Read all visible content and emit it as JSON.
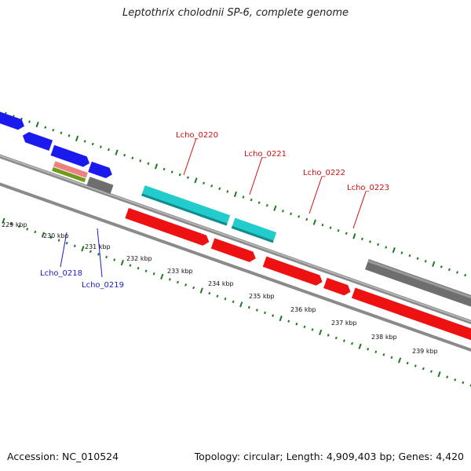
{
  "title": "Leptothrix cholodnii SP-6, complete genome",
  "accession": "Accession: NC_010524",
  "summary": "Topology: circular; Length: 4,909,403 bp; Genes: 4,420",
  "colors": {
    "background": "#ffffff",
    "backbone": "#8a8a8a",
    "ticks": "#1f7a1f",
    "gene_blue": "#1a1aee",
    "gene_red": "#ee1111",
    "gene_cyan": "#22cccc",
    "gene_pink": "#ef8080",
    "gene_olive": "#6f9a1c",
    "gene_gray": "#6e6e6e",
    "label_top": "#cc1111",
    "label_bottom": "#1a1acc"
  },
  "scale_labels": [
    "229 kbp",
    "230 kbp",
    "231 kbp",
    "232 kbp",
    "233 kbp",
    "234 kbp",
    "235 kbp",
    "236 kbp",
    "237 kbp",
    "238 kbp",
    "239 kbp"
  ],
  "gene_labels_top": [
    "Lcho_0220",
    "Lcho_0221",
    "Lcho_0222",
    "Lcho_0223"
  ],
  "gene_labels_bottom": [
    "Lcho_0218",
    "Lcho_0219"
  ]
}
